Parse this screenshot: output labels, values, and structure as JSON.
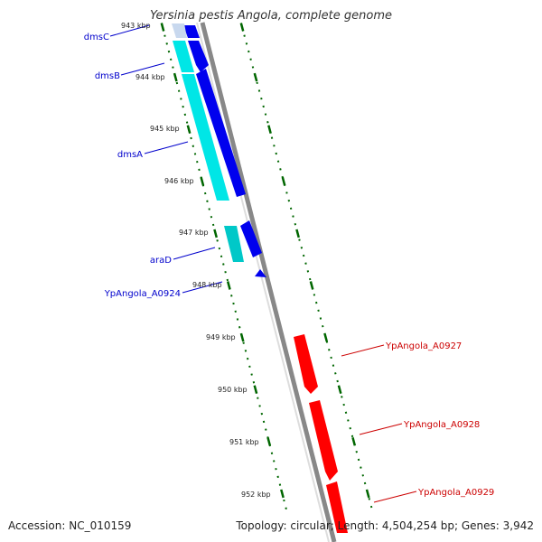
{
  "title": "Yersinia pestis Angola, complete genome",
  "footer": {
    "accession": "Accession: NC_010159",
    "summary": "Topology: circular; Length: 4,504,254 bp; Genes: 3,942"
  },
  "colors": {
    "forward": "#0000ee",
    "forward_light": "#00e6e6",
    "reverse": "#ff0000",
    "backbone": "#888888",
    "ticks": "#006600"
  },
  "ticks": [
    "943 kbp",
    "944 kbp",
    "945 kbp",
    "946 kbp",
    "947 kbp",
    "948 kbp",
    "949 kbp",
    "950 kbp",
    "951 kbp",
    "952 kbp"
  ],
  "genes": [
    {
      "name": "dmsC",
      "strand": "forward"
    },
    {
      "name": "dmsB",
      "strand": "forward"
    },
    {
      "name": "dmsA",
      "strand": "forward"
    },
    {
      "name": "araD",
      "strand": "forward"
    },
    {
      "name": "YpAngola_A0924",
      "strand": "forward"
    },
    {
      "name": "YpAngola_A0927",
      "strand": "reverse"
    },
    {
      "name": "YpAngola_A0928",
      "strand": "reverse"
    },
    {
      "name": "YpAngola_A0929",
      "strand": "reverse"
    }
  ]
}
